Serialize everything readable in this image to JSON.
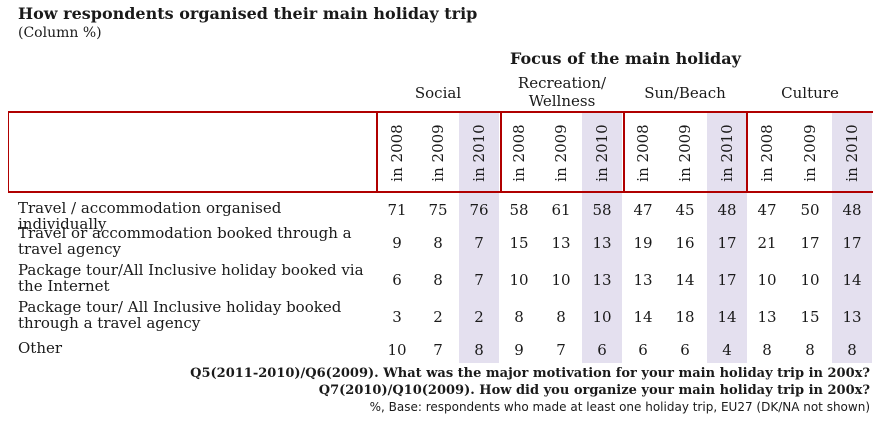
{
  "title": "How respondents organised their main holiday trip",
  "subtitle": "(Column %)",
  "focus_header": "Focus of the main holiday",
  "groups": [
    "Social",
    "Recreation/ Wellness",
    "Sun/Beach",
    "Culture"
  ],
  "years": [
    "in 2008",
    "in 2009",
    "in 2010"
  ],
  "rows": [
    {
      "label": "Travel / accommodation organised individually",
      "values": [
        71,
        75,
        76,
        58,
        61,
        58,
        47,
        45,
        48,
        47,
        50,
        48
      ]
    },
    {
      "label": "Travel or accommodation booked through a travel agency",
      "values": [
        9,
        8,
        7,
        15,
        13,
        13,
        19,
        16,
        17,
        21,
        17,
        17
      ]
    },
    {
      "label": "Package tour/All Inclusive holiday booked via the Internet",
      "values": [
        6,
        8,
        7,
        10,
        10,
        13,
        13,
        14,
        17,
        10,
        10,
        14
      ]
    },
    {
      "label": "Package tour/ All Inclusive holiday booked through a travel agency",
      "values": [
        3,
        2,
        2,
        8,
        8,
        10,
        14,
        18,
        14,
        13,
        15,
        13
      ]
    },
    {
      "label": "Other",
      "values": [
        10,
        7,
        8,
        9,
        7,
        6,
        6,
        6,
        4,
        8,
        8,
        8
      ]
    }
  ],
  "footnotes": [
    "Q5(2011-2010)/Q6(2009). What was the major motivation for your main holiday trip in 200x?",
    "Q7(2010)/Q10(2009). How did you organize your main holiday trip in 200x?",
    "%, Base: respondents who made at least one holiday trip, EU27 (DK/NA not shown)"
  ],
  "colors": {
    "accent_red": "#b00000",
    "highlight": "#e4e0ef"
  }
}
